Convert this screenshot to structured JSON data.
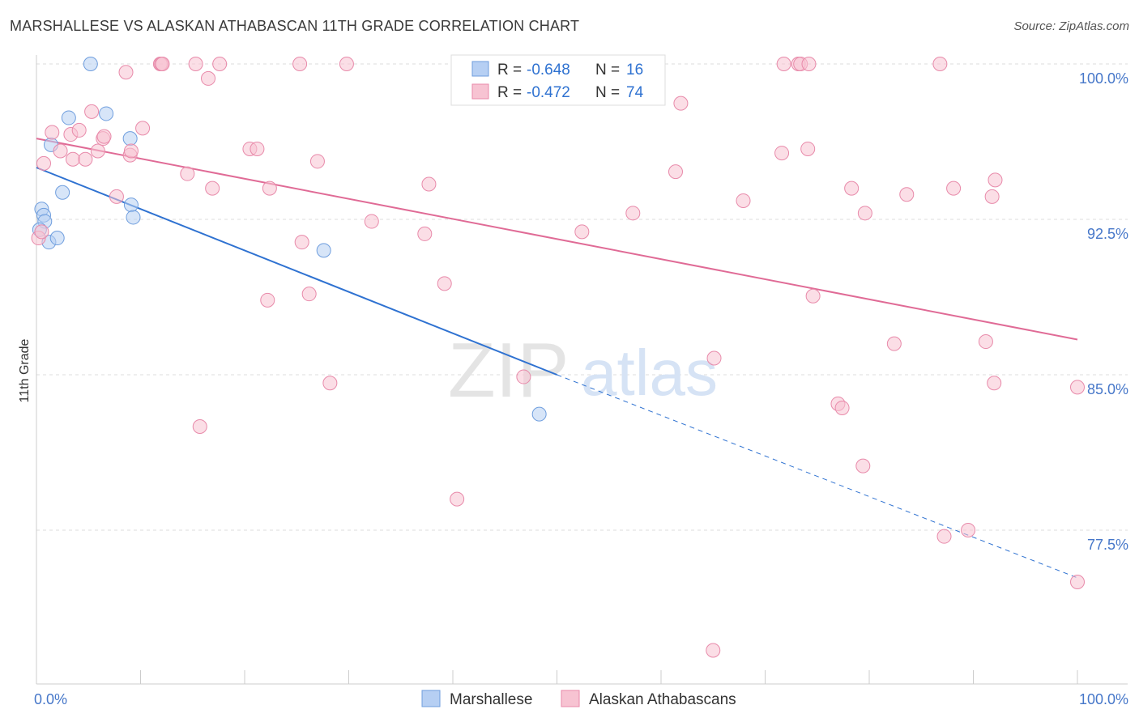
{
  "title": "MARSHALLESE VS ALASKAN ATHABASCAN 11TH GRADE CORRELATION CHART",
  "source": "Source: ZipAtlas.com",
  "watermark": {
    "zip": "ZIP",
    "atlas": "atlas"
  },
  "colors": {
    "blue_fill": "#b6cff3",
    "blue_stroke": "#6f9ede",
    "blue_line": "#2f72d1",
    "pink_fill": "#f7c3d2",
    "pink_stroke": "#e88aaa",
    "pink_line": "#e06b96",
    "tick_label": "#4677c9",
    "grid": "#dddddd"
  },
  "legend": {
    "rows": [
      {
        "r_label": "R = ",
        "r_value": "-0.648",
        "n_label": "N = ",
        "n_value": "16",
        "series": "blue"
      },
      {
        "r_label": "R = ",
        "r_value": "-0.472",
        "n_label": "N = ",
        "n_value": "74",
        "series": "pink"
      }
    ]
  },
  "bottom_legend": [
    {
      "label": "Marshallese",
      "series": "blue"
    },
    {
      "label": "Alaskan Athabascans",
      "series": "pink"
    }
  ],
  "chart_data": {
    "type": "scatter",
    "ylabel": "11th Grade",
    "x_tick_labels": [
      {
        "value": 0,
        "label": "0.0%"
      },
      {
        "value": 100,
        "label": "100.0%"
      }
    ],
    "y_tick_labels": [
      {
        "value": 100,
        "label": "100.0%"
      },
      {
        "value": 92.5,
        "label": "92.5%"
      },
      {
        "value": 85,
        "label": "85.0%"
      },
      {
        "value": 77.5,
        "label": "77.5%"
      }
    ],
    "xlim": [
      0,
      100
    ],
    "ylim": [
      70.5,
      101
    ],
    "grid": true,
    "series": [
      {
        "name": "Marshallese",
        "color": "blue",
        "points": [
          [
            5.2,
            100.0
          ],
          [
            3.1,
            97.4
          ],
          [
            6.7,
            97.6
          ],
          [
            1.4,
            96.1
          ],
          [
            9.0,
            96.4
          ],
          [
            2.5,
            93.8
          ],
          [
            0.5,
            93.0
          ],
          [
            0.7,
            92.7
          ],
          [
            0.8,
            92.4
          ],
          [
            9.1,
            93.2
          ],
          [
            9.3,
            92.6
          ],
          [
            0.3,
            92.0
          ],
          [
            1.2,
            91.4
          ],
          [
            2.0,
            91.6
          ],
          [
            27.6,
            91.0
          ],
          [
            48.3,
            83.1
          ]
        ],
        "trend": {
          "x0": 0,
          "y0": 95.0,
          "x1": 50,
          "y1": 85.0,
          "dash_x1": 100,
          "dash_y1": 75.2
        }
      },
      {
        "name": "Alaskan Athabascans",
        "color": "pink",
        "points": [
          [
            0.2,
            91.6
          ],
          [
            0.5,
            91.9
          ],
          [
            0.7,
            95.2
          ],
          [
            1.5,
            96.7
          ],
          [
            2.3,
            95.8
          ],
          [
            3.3,
            96.6
          ],
          [
            3.5,
            95.4
          ],
          [
            4.1,
            96.8
          ],
          [
            4.7,
            95.4
          ],
          [
            5.3,
            97.7
          ],
          [
            5.9,
            95.8
          ],
          [
            6.4,
            96.4
          ],
          [
            6.5,
            96.5
          ],
          [
            7.7,
            93.6
          ],
          [
            8.6,
            99.6
          ],
          [
            9.0,
            95.6
          ],
          [
            9.1,
            95.8
          ],
          [
            10.2,
            96.9
          ],
          [
            11.9,
            100.0
          ],
          [
            12.0,
            100.0
          ],
          [
            12.1,
            100.0
          ],
          [
            14.5,
            94.7
          ],
          [
            15.3,
            100.0
          ],
          [
            16.5,
            99.3
          ],
          [
            16.9,
            94.0
          ],
          [
            17.6,
            100.0
          ],
          [
            20.5,
            95.9
          ],
          [
            21.2,
            95.9
          ],
          [
            22.4,
            94.0
          ],
          [
            25.3,
            100.0
          ],
          [
            25.5,
            91.4
          ],
          [
            27.0,
            95.3
          ],
          [
            29.8,
            100.0
          ],
          [
            32.2,
            92.4
          ],
          [
            37.7,
            94.2
          ],
          [
            37.3,
            91.8
          ],
          [
            39.2,
            89.4
          ],
          [
            40.4,
            79.0
          ],
          [
            52.4,
            91.9
          ],
          [
            57.3,
            92.8
          ],
          [
            61.4,
            94.8
          ],
          [
            61.9,
            98.1
          ],
          [
            65.1,
            85.8
          ],
          [
            67.9,
            93.4
          ],
          [
            71.8,
            100.0
          ],
          [
            71.6,
            95.7
          ],
          [
            73.2,
            100.0
          ],
          [
            73.4,
            100.0
          ],
          [
            74.2,
            100.0
          ],
          [
            74.1,
            95.9
          ],
          [
            74.6,
            88.8
          ],
          [
            77.0,
            83.6
          ],
          [
            77.4,
            83.4
          ],
          [
            78.3,
            94.0
          ],
          [
            79.6,
            92.8
          ],
          [
            79.4,
            80.6
          ],
          [
            82.4,
            86.5
          ],
          [
            83.6,
            93.7
          ],
          [
            86.8,
            100.0
          ],
          [
            87.2,
            77.2
          ],
          [
            88.1,
            94.0
          ],
          [
            89.5,
            77.5
          ],
          [
            91.2,
            86.6
          ],
          [
            91.8,
            93.6
          ],
          [
            92.1,
            94.4
          ],
          [
            100.0,
            75.0
          ],
          [
            100.0,
            84.4
          ],
          [
            92.0,
            84.6
          ],
          [
            46.8,
            84.9
          ],
          [
            28.2,
            84.6
          ],
          [
            15.7,
            82.5
          ],
          [
            22.2,
            88.6
          ],
          [
            26.2,
            88.9
          ],
          [
            65.0,
            71.7
          ]
        ],
        "trend": {
          "x0": 0,
          "y0": 96.4,
          "x1": 100,
          "y1": 86.7
        }
      }
    ]
  }
}
